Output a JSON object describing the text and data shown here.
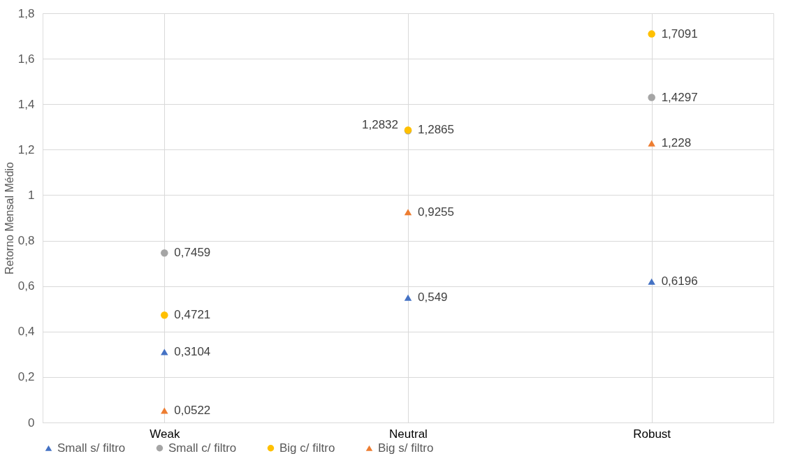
{
  "chart_data": {
    "type": "scatter",
    "ylabel": "Retorno Mensal Médio",
    "categories": [
      "Weak",
      "Neutral",
      "Robust"
    ],
    "series": [
      {
        "name": "Small s/ filtro",
        "color": "#4472c4",
        "marker": "triangle",
        "values": [
          0.3104,
          0.549,
          0.6196
        ],
        "value_labels": [
          "0,3104",
          "0,549",
          "0,6196"
        ]
      },
      {
        "name": "Small c/ filtro",
        "color": "#a5a5a5",
        "marker": "circle",
        "values": [
          0.7459,
          1.2832,
          1.4297
        ],
        "value_labels": [
          "0,7459",
          "1,2832",
          "1,4297"
        ]
      },
      {
        "name": "Big c/ filtro",
        "color": "#ffc000",
        "marker": "circle",
        "values": [
          0.4721,
          1.2865,
          1.7091
        ],
        "value_labels": [
          "0,4721",
          "1,2865",
          "1,7091"
        ]
      },
      {
        "name": "Big s/ filtro",
        "color": "#ed7d31",
        "marker": "triangle",
        "values": [
          0.0522,
          0.9255,
          1.228
        ],
        "value_labels": [
          "0,0522",
          "0,9255",
          "1,228"
        ]
      }
    ],
    "ylim": [
      0,
      1.8
    ],
    "yticks": [
      {
        "value": 0,
        "label": "0"
      },
      {
        "value": 0.2,
        "label": "0,2"
      },
      {
        "value": 0.4,
        "label": "0,4"
      },
      {
        "value": 0.6,
        "label": "0,6"
      },
      {
        "value": 0.8,
        "label": "0,8"
      },
      {
        "value": 1,
        "label": "1"
      },
      {
        "value": 1.2,
        "label": "1,2"
      },
      {
        "value": 1.4,
        "label": "1,4"
      },
      {
        "value": 1.6,
        "label": "1,6"
      },
      {
        "value": 1.8,
        "label": "1,8"
      }
    ],
    "grid": true,
    "legend": "bottom"
  }
}
